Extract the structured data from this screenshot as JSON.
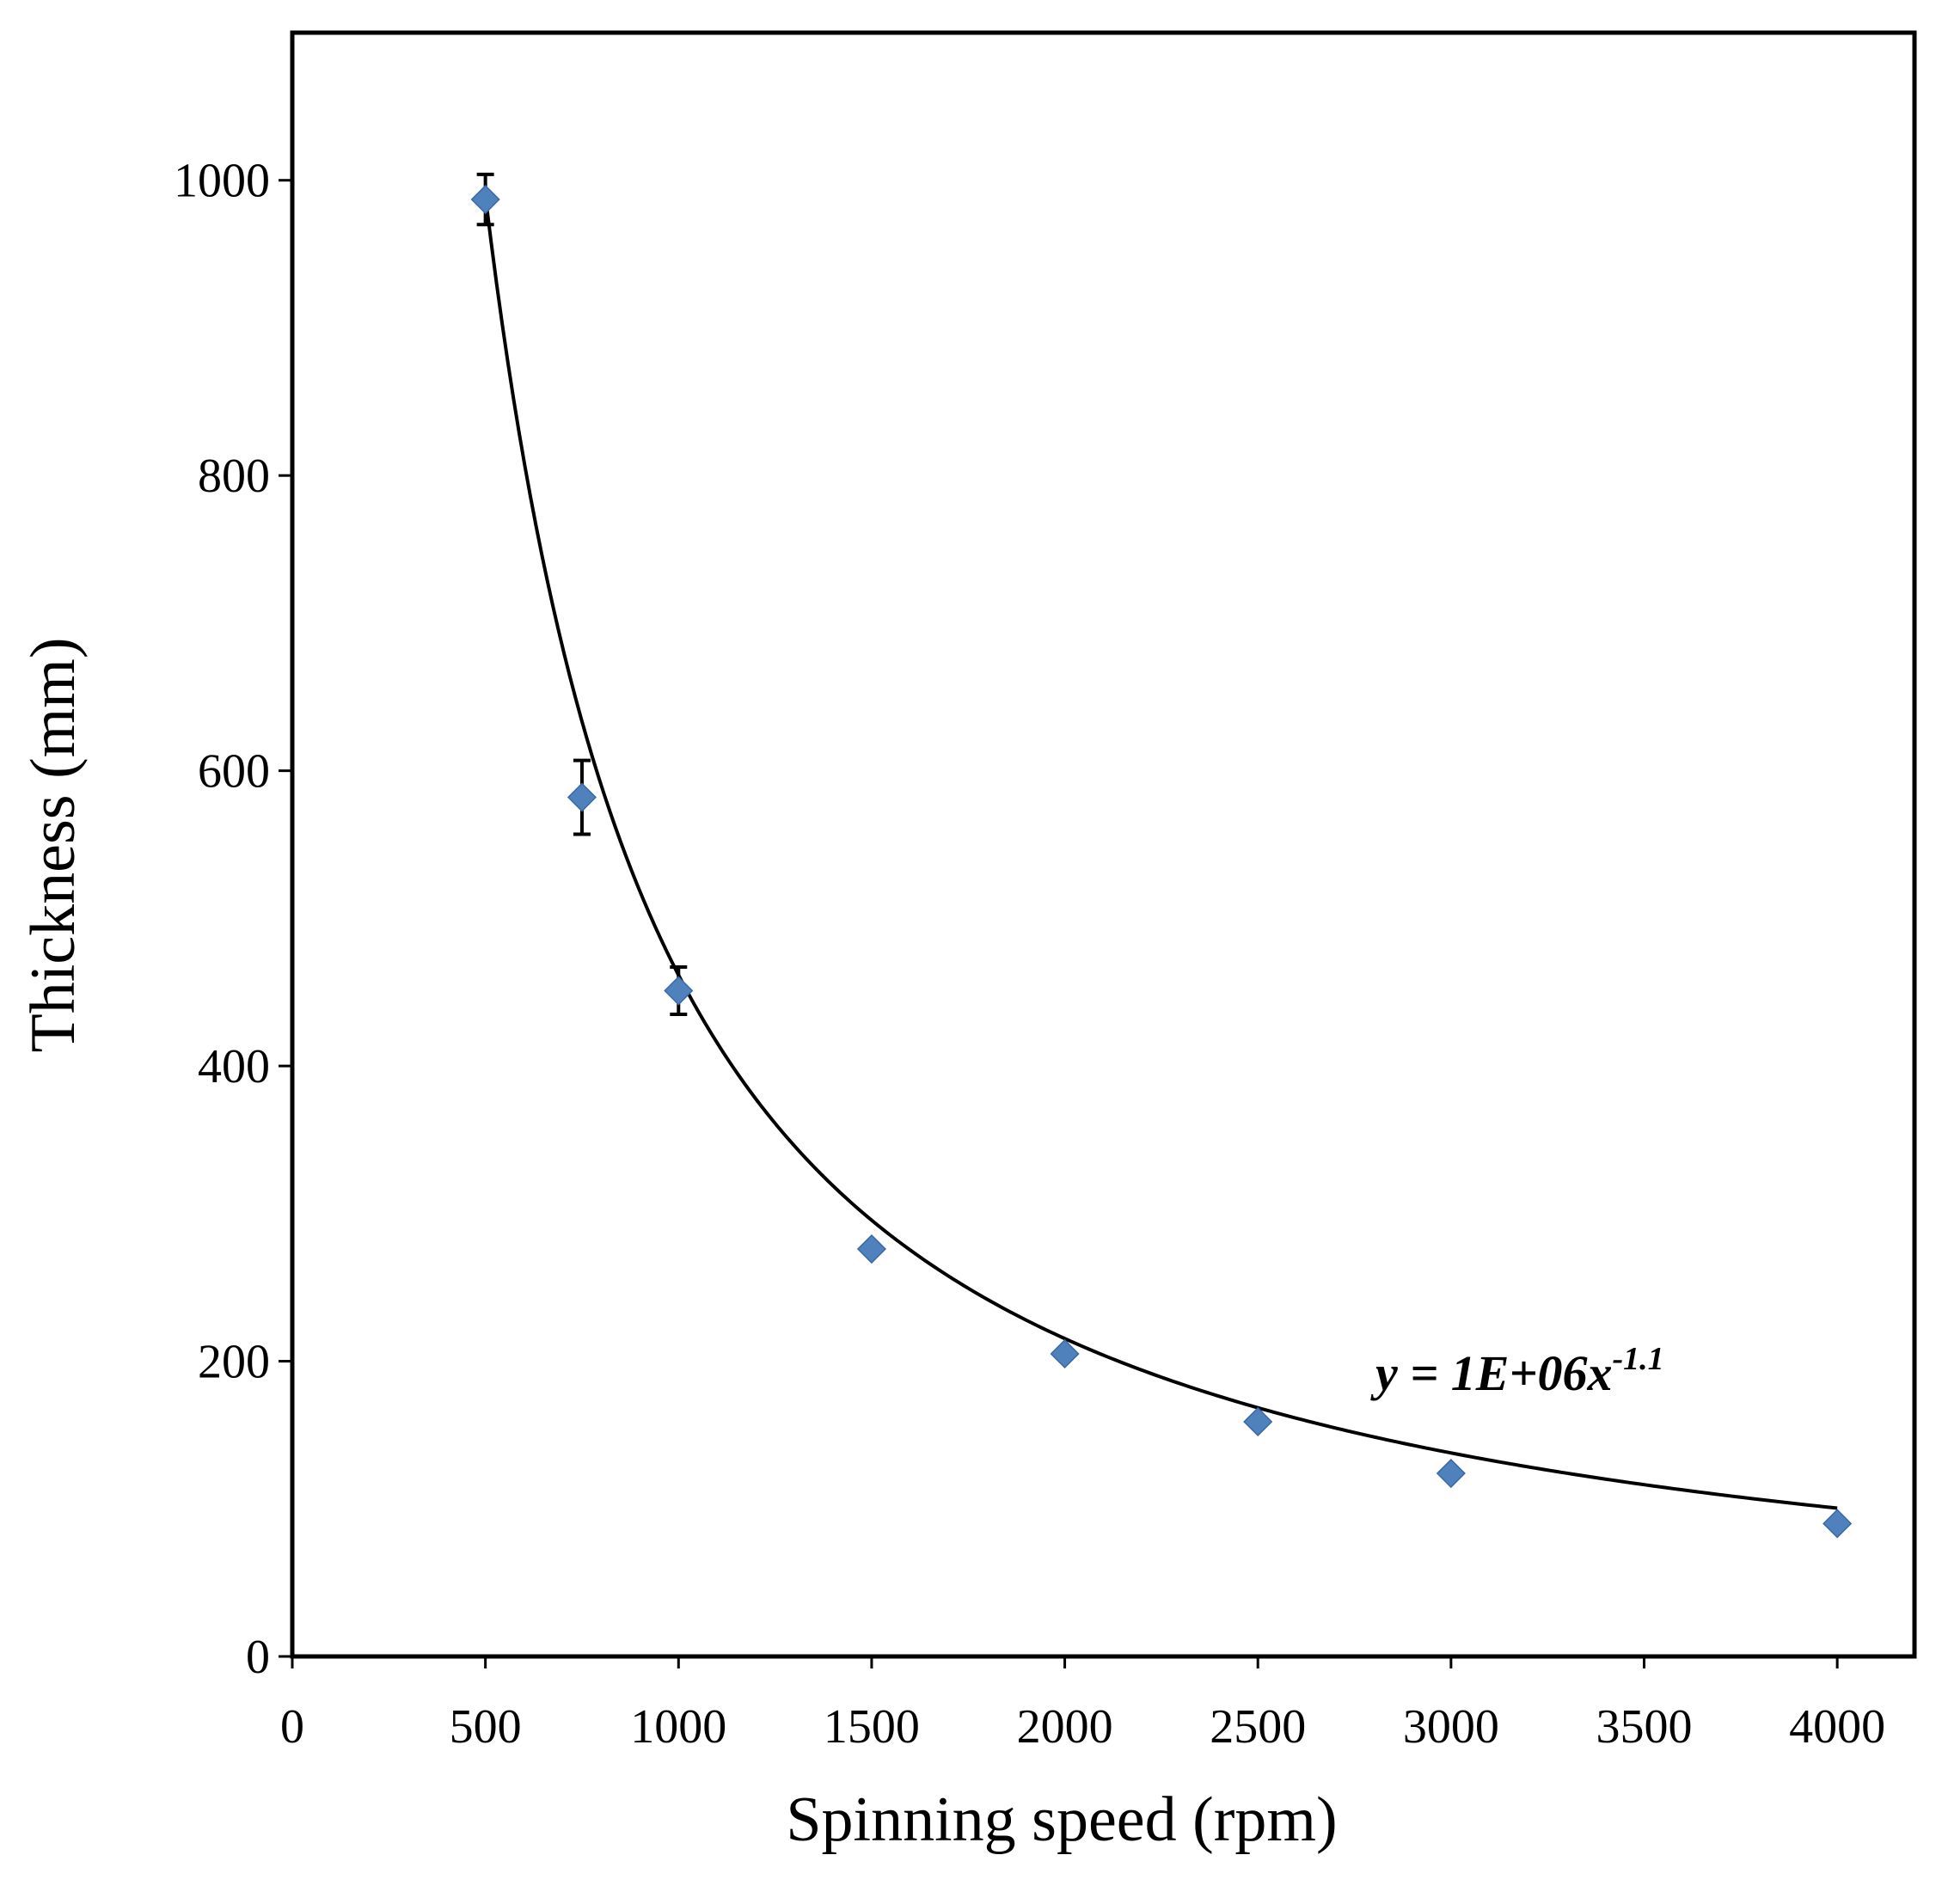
{
  "chart_data": {
    "type": "scatter",
    "title": "",
    "xlabel": "Spinning  speed (rpm)",
    "ylabel": "Thickness (mm)",
    "xlim": [
      0,
      4200
    ],
    "ylim": [
      0,
      1100
    ],
    "xticks": [
      0,
      500,
      1000,
      1500,
      2000,
      2500,
      3000,
      3500,
      4000
    ],
    "yticks": [
      0,
      200,
      400,
      600,
      800,
      1000
    ],
    "grid": false,
    "legend": "none",
    "marker_color": "#4f81bd",
    "series": [
      {
        "name": "Thickness",
        "points": [
          {
            "x": 500,
            "y": 987,
            "err": 17
          },
          {
            "x": 750,
            "y": 582,
            "err": 25
          },
          {
            "x": 1000,
            "y": 451,
            "err": 16
          },
          {
            "x": 1500,
            "y": 276,
            "err": 0
          },
          {
            "x": 2000,
            "y": 205,
            "err": 0
          },
          {
            "x": 2500,
            "y": 159,
            "err": 0
          },
          {
            "x": 3000,
            "y": 124,
            "err": 0
          },
          {
            "x": 4000,
            "y": 90,
            "err": 0
          }
        ]
      }
    ],
    "trendline": {
      "type": "power",
      "a": 921000,
      "b": -1.1,
      "x_range": [
        500,
        4000
      ],
      "equation": {
        "base": "y = 1E+06x",
        "exponent": "-1.1"
      }
    }
  }
}
